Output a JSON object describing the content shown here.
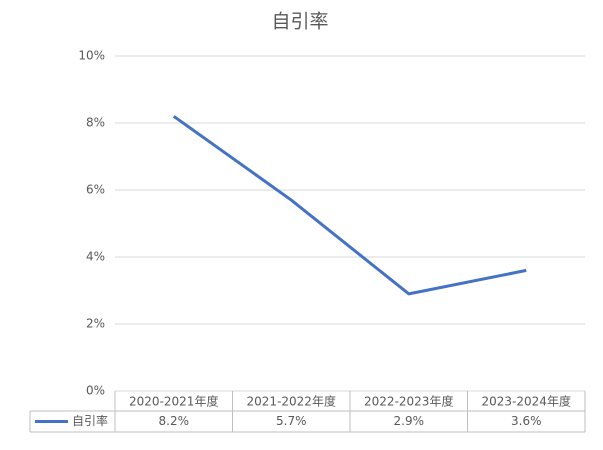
{
  "chart_data": {
    "type": "line",
    "title": "自引率",
    "categories": [
      "2020-2021年度",
      "2021-2022年度",
      "2022-2023年度",
      "2023-2024年度"
    ],
    "series": [
      {
        "name": "自引率",
        "color": "#4472c4",
        "values": [
          8.2,
          5.7,
          2.9,
          3.6
        ],
        "value_labels": [
          "8.2%",
          "5.7%",
          "2.9%",
          "3.6%"
        ]
      }
    ],
    "ylim": [
      0,
      10
    ],
    "yticks": [
      {
        "value": 0,
        "label": "0%"
      },
      {
        "value": 2,
        "label": "2%"
      },
      {
        "value": 4,
        "label": "4%"
      },
      {
        "value": 6,
        "label": "6%"
      },
      {
        "value": 8,
        "label": "8%"
      },
      {
        "value": 10,
        "label": "10%"
      }
    ],
    "grid": true
  }
}
